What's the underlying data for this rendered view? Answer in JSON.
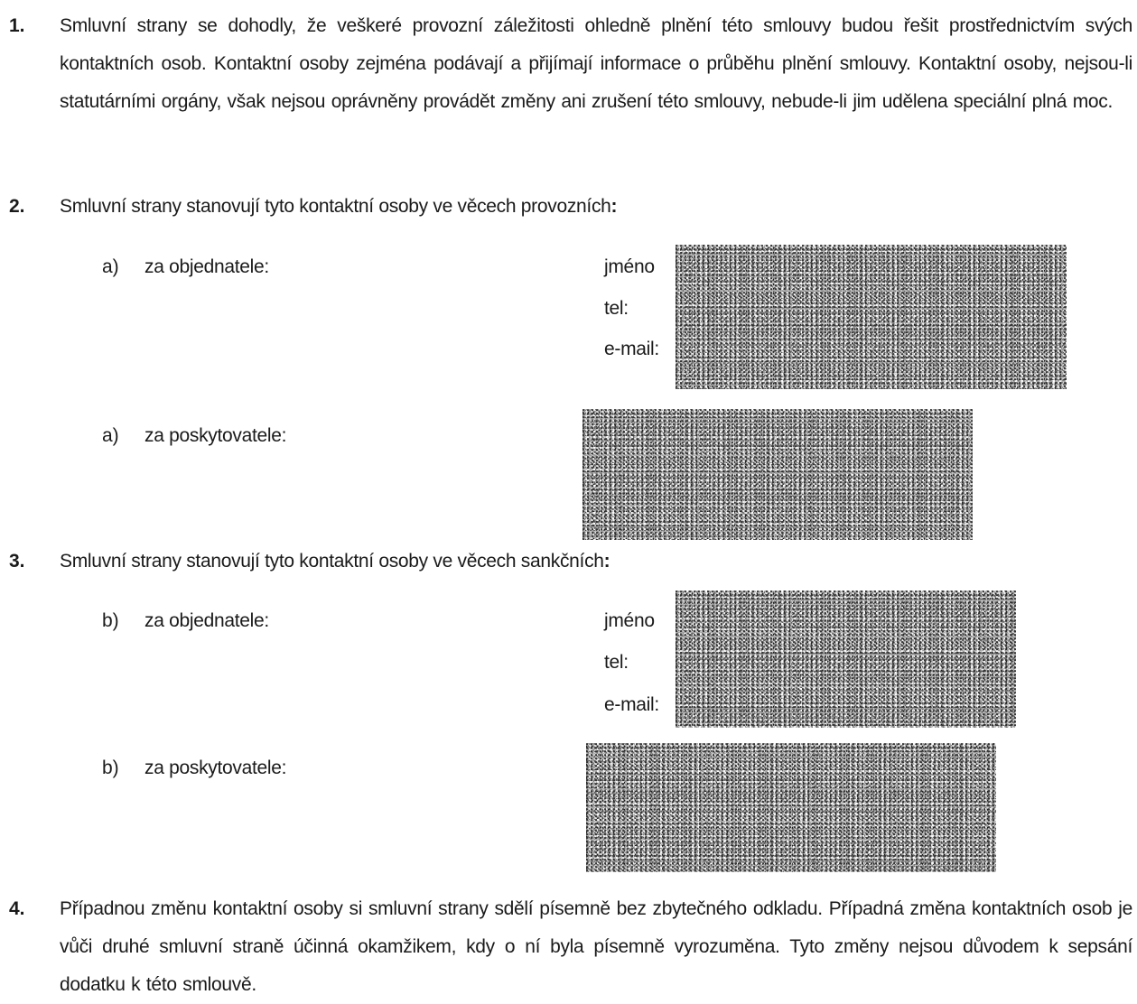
{
  "section1": {
    "number": "1.",
    "text": "Smluvní strany se dohodly, že veškeré provozní záležitosti ohledně plnění této smlouvy budou řešit prostřednictvím svých kontaktních osob. Kontaktní osoby zejména podávají a přijímají informace o průběhu plnění smlouvy. Kontaktní osoby, nejsou-li statutárními orgány, však nejsou oprávněny provádět změny ani zrušení této smlouvy, nebude-li jim udělena speciální plná moc."
  },
  "section2": {
    "number": "2.",
    "text": "Smluvní strany stanovují tyto kontaktní osoby ve věcech provozních",
    "colon": ":",
    "items": [
      {
        "letter": "a)",
        "label": "za objednatele:",
        "fields": [
          "jméno",
          "tel:",
          "e-mail:"
        ]
      },
      {
        "letter": "a)",
        "label": "za poskytovatele:"
      }
    ]
  },
  "section3": {
    "number": "3.",
    "text": "Smluvní strany stanovují tyto kontaktní osoby ve věcech sankčních",
    "colon": ":",
    "items": [
      {
        "letter": "b)",
        "label": "za objednatele:",
        "fields": [
          "jméno",
          "tel:",
          "e-mail:"
        ]
      },
      {
        "letter": "b)",
        "label": "za poskytovatele:"
      }
    ]
  },
  "section4": {
    "number": "4.",
    "text": "Případnou změnu kontaktní osoby si smluvní strany sdělí písemně bez zbytečného odkladu. Případná změna kontaktních osob je vůči druhé smluvní straně účinná okamžikem, kdy o ní byla písemně vyrozuměna. Tyto změny nejsou důvodem k sepsání dodatku k této smlouvě."
  }
}
